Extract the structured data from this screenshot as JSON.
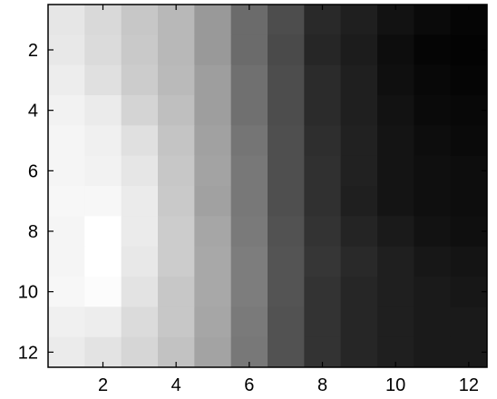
{
  "chart_data": {
    "type": "heatmap",
    "colormap": "gray",
    "rows": 12,
    "cols": 12,
    "xlim": [
      0.5,
      12.5
    ],
    "ylim": [
      0.5,
      12.5
    ],
    "y_reversed": true,
    "xticks": [
      2,
      4,
      6,
      8,
      10,
      12
    ],
    "yticks": [
      2,
      4,
      6,
      8,
      10,
      12
    ],
    "xtick_labels": [
      "2",
      "4",
      "6",
      "8",
      "10",
      "12"
    ],
    "ytick_labels": [
      "2",
      "4",
      "6",
      "8",
      "10",
      "12"
    ],
    "grid": false,
    "values": [
      [
        0.9,
        0.85,
        0.78,
        0.72,
        0.6,
        0.42,
        0.3,
        0.16,
        0.12,
        0.07,
        0.04,
        0.02
      ],
      [
        0.91,
        0.86,
        0.79,
        0.72,
        0.6,
        0.42,
        0.29,
        0.15,
        0.11,
        0.05,
        0.02,
        0.01
      ],
      [
        0.93,
        0.88,
        0.8,
        0.73,
        0.62,
        0.44,
        0.3,
        0.17,
        0.12,
        0.06,
        0.03,
        0.02
      ],
      [
        0.95,
        0.92,
        0.83,
        0.75,
        0.62,
        0.44,
        0.3,
        0.17,
        0.12,
        0.07,
        0.04,
        0.03
      ],
      [
        0.96,
        0.94,
        0.88,
        0.77,
        0.63,
        0.46,
        0.31,
        0.18,
        0.13,
        0.08,
        0.05,
        0.04
      ],
      [
        0.96,
        0.95,
        0.9,
        0.78,
        0.64,
        0.47,
        0.31,
        0.19,
        0.13,
        0.08,
        0.06,
        0.05
      ],
      [
        0.97,
        0.97,
        0.92,
        0.79,
        0.63,
        0.47,
        0.31,
        0.19,
        0.12,
        0.08,
        0.06,
        0.05
      ],
      [
        0.96,
        1.0,
        0.92,
        0.8,
        0.65,
        0.48,
        0.32,
        0.2,
        0.14,
        0.1,
        0.07,
        0.06
      ],
      [
        0.96,
        1.0,
        0.91,
        0.8,
        0.66,
        0.49,
        0.33,
        0.21,
        0.16,
        0.12,
        0.09,
        0.08
      ],
      [
        0.97,
        0.99,
        0.89,
        0.78,
        0.66,
        0.49,
        0.33,
        0.2,
        0.15,
        0.12,
        0.1,
        0.09
      ],
      [
        0.94,
        0.93,
        0.86,
        0.78,
        0.65,
        0.48,
        0.32,
        0.2,
        0.15,
        0.12,
        0.1,
        0.1
      ],
      [
        0.92,
        0.89,
        0.84,
        0.76,
        0.64,
        0.47,
        0.32,
        0.2,
        0.15,
        0.12,
        0.1,
        0.1
      ]
    ]
  }
}
